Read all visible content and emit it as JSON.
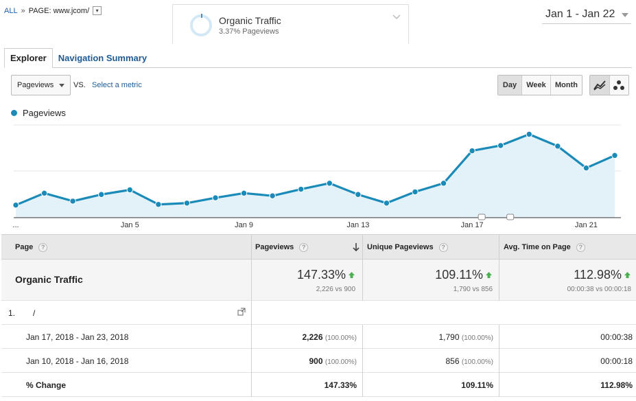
{
  "header": {
    "breadcrumb_all": "ALL",
    "breadcrumb_sep": "»",
    "breadcrumb_page": "PAGE: www.jcom/",
    "segment": {
      "title": "Organic Traffic",
      "subtitle": "3.37% Pageviews"
    },
    "date_range": "Jan 1 - Jan 22"
  },
  "tabs": [
    {
      "label": "Explorer",
      "active": true
    },
    {
      "label": "Navigation Summary",
      "active": false
    }
  ],
  "controls": {
    "metric": "Pageviews",
    "vs": "VS.",
    "select_metric": "Select a metric",
    "periods": [
      {
        "label": "Day",
        "active": true
      },
      {
        "label": "Week",
        "active": false
      },
      {
        "label": "Month",
        "active": false
      }
    ],
    "chart_type_icons": [
      "line-chart-icon",
      "motion-chart-icon"
    ]
  },
  "chart_data": {
    "type": "area",
    "series": [
      {
        "name": "Pageviews",
        "values": [
          95,
          185,
          125,
          175,
          210,
          100,
          110,
          150,
          185,
          165,
          215,
          260,
          175,
          110,
          195,
          260,
          505,
          545,
          630,
          540,
          375,
          470
        ]
      }
    ],
    "x_tick_labels": [
      "...",
      "Jan 5",
      "Jan 9",
      "Jan 13",
      "Jan 17",
      "Jan 21"
    ],
    "ylim": [
      0,
      700
    ],
    "grid": true,
    "color": "#1a8ab8",
    "fill": "#e3f1f9"
  },
  "table": {
    "headers": {
      "page": "Page",
      "pageviews": "Pageviews",
      "unique": "Unique Pageviews",
      "avg_time": "Avg. Time on Page"
    },
    "total": {
      "label": "Organic Traffic",
      "pageviews_pct": "147.33%",
      "pageviews_sub": "2,226 vs 900",
      "unique_pct": "109.11%",
      "unique_sub": "1,790 vs 856",
      "avg_pct": "112.98%",
      "avg_sub": "00:00:38 vs 00:00:18"
    },
    "dimension_row": {
      "index": "1.",
      "value": "/"
    },
    "rows": [
      {
        "label": "Jan 17, 2018 - Jan 23, 2018",
        "pageviews": "2,226",
        "pageviews_share": "(100.00%)",
        "unique": "1,790",
        "unique_share": "(100.00%)",
        "avg": "00:00:38"
      },
      {
        "label": "Jan 10, 2018 - Jan 16, 2018",
        "pageviews": "900",
        "pageviews_share": "(100.00%)",
        "unique": "856",
        "unique_share": "(100.00%)",
        "avg": "00:00:18"
      }
    ],
    "change": {
      "label": "% Change",
      "pageviews": "147.33%",
      "unique": "109.11%",
      "avg": "112.98%"
    }
  },
  "colors": {
    "accent": "#1a8ab8",
    "link": "#1f5a93",
    "up_arrow": "#4caf50"
  }
}
